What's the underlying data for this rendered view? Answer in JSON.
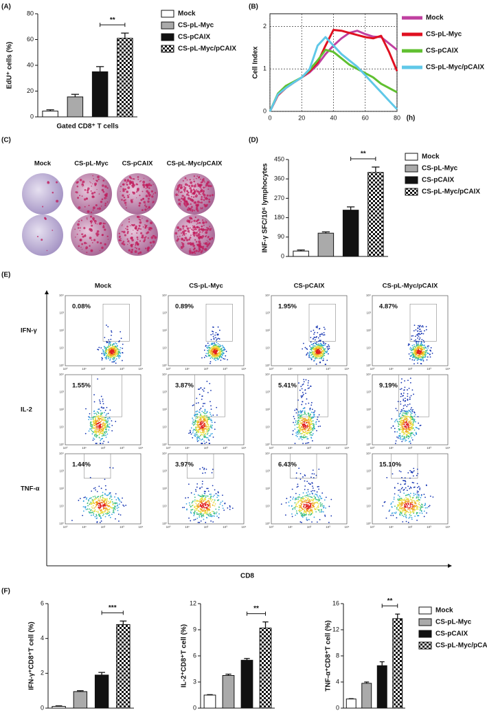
{
  "panel_labels": [
    "(A)",
    "(B)",
    "(C)",
    "(D)",
    "(E)",
    "(F)"
  ],
  "chart_data": [
    {
      "type": "bar",
      "y_label": "EdU⁺ cells (%)",
      "x_label": "Gated CD8⁺ T cells",
      "categories": [
        "Mock",
        "CS-pL-Myc",
        "CS-pCAIX",
        "CS-pL-Myc/pCAIX"
      ],
      "values": [
        4.5,
        15.5,
        35,
        61
      ],
      "errors": [
        1,
        2,
        4,
        4
      ],
      "fills": [
        "#ffffff",
        "#aaaaaa",
        "#111111",
        "checkerboard"
      ],
      "ylim": [
        0,
        80
      ],
      "yticks": [
        0,
        20,
        40,
        60,
        80
      ],
      "significance": {
        "between": [
          2,
          3
        ],
        "label": "**"
      }
    },
    {
      "type": "line",
      "y_label": "Cell Index",
      "x_label": "(h)",
      "grid": true,
      "x": [
        0,
        5,
        10,
        15,
        20,
        25,
        30,
        35,
        40,
        45,
        50,
        55,
        60,
        65,
        70,
        75,
        80
      ],
      "xlim": [
        0,
        80
      ],
      "xticks": [
        0,
        20,
        40,
        60,
        80
      ],
      "ylim": [
        0,
        2.3
      ],
      "yticks": [
        0,
        1,
        2
      ],
      "series": [
        {
          "name": "Mock",
          "color": "#c040a0",
          "values": [
            0,
            0.38,
            0.55,
            0.68,
            0.8,
            0.92,
            1.1,
            1.35,
            1.55,
            1.72,
            1.85,
            1.9,
            1.82,
            1.76,
            1.75,
            1.6,
            1.45
          ]
        },
        {
          "name": "CS-pL-Myc",
          "color": "#e01020",
          "values": [
            0,
            0.38,
            0.55,
            0.68,
            0.8,
            0.95,
            1.15,
            1.55,
            1.92,
            1.9,
            1.85,
            1.8,
            1.75,
            1.72,
            1.78,
            1.4,
            0.95
          ]
        },
        {
          "name": "CS-pCAIX",
          "color": "#60c030",
          "values": [
            0,
            0.42,
            0.6,
            0.7,
            0.8,
            0.98,
            1.2,
            1.45,
            1.4,
            1.25,
            1.1,
            1.0,
            0.9,
            0.8,
            0.65,
            0.55,
            0.45
          ]
        },
        {
          "name": "CS-pL-Myc/pCAIX",
          "color": "#60c8e8",
          "values": [
            0,
            0.4,
            0.55,
            0.68,
            0.8,
            1.0,
            1.55,
            1.75,
            1.55,
            1.35,
            1.2,
            1.05,
            0.85,
            0.65,
            0.45,
            0.25,
            0.05
          ]
        }
      ]
    },
    {
      "type": "bar",
      "y_label": "INF-γ SFC/10⁶ lymphocytes",
      "categories": [
        "Mock",
        "CS-pL-Myc",
        "CS-pCAIX",
        "CS-pL-Myc/pCAIX"
      ],
      "values": [
        25,
        108,
        215,
        390
      ],
      "errors": [
        5,
        6,
        15,
        25
      ],
      "fills": [
        "#ffffff",
        "#aaaaaa",
        "#111111",
        "checkerboard"
      ],
      "ylim": [
        0,
        450
      ],
      "yticks": [
        0,
        90,
        180,
        270,
        360,
        450
      ],
      "significance": {
        "between": [
          2,
          3
        ],
        "label": "**"
      }
    },
    {
      "type": "bar",
      "y_label": "IFN-γ⁺CD8⁺T cell (%)",
      "values": [
        0.1,
        0.95,
        1.9,
        4.8
      ],
      "errors": [
        0.03,
        0.05,
        0.15,
        0.2
      ],
      "fills": [
        "#ffffff",
        "#aaaaaa",
        "#111111",
        "checkerboard"
      ],
      "ylim": [
        0,
        6
      ],
      "yticks": [
        0,
        2,
        4,
        6
      ],
      "significance": {
        "between": [
          2,
          3
        ],
        "label": "***"
      }
    },
    {
      "type": "bar",
      "y_label": "IL-2⁺CD8⁺T cell (%)",
      "values": [
        1.5,
        3.75,
        5.5,
        9.2
      ],
      "errors": [
        0.05,
        0.15,
        0.2,
        0.7
      ],
      "fills": [
        "#ffffff",
        "#aaaaaa",
        "#111111",
        "checkerboard"
      ],
      "ylim": [
        0,
        12
      ],
      "yticks": [
        0,
        3,
        6,
        9,
        12
      ],
      "significance": {
        "between": [
          2,
          3
        ],
        "label": "**"
      }
    },
    {
      "type": "bar",
      "y_label": "TNF-α⁺CD8⁺T cell (%)",
      "categories": [
        "Mock",
        "CS-pL-Myc",
        "CS-pCAIX",
        "CS-pL-Myc/pCAIX"
      ],
      "values": [
        1.4,
        3.8,
        6.5,
        13.7
      ],
      "errors": [
        0.05,
        0.2,
        0.6,
        0.7
      ],
      "fills": [
        "#ffffff",
        "#aaaaaa",
        "#111111",
        "checkerboard"
      ],
      "ylim": [
        0,
        16
      ],
      "yticks": [
        0,
        4,
        8,
        12,
        16
      ],
      "significance": {
        "between": [
          2,
          3
        ],
        "label": "**"
      }
    }
  ],
  "elispot": {
    "columns": [
      "Mock",
      "CS-pL-Myc",
      "CS-pCAIX",
      "CS-pL-Myc/pCAIX"
    ]
  },
  "flow": {
    "columns": [
      "Mock",
      "CS-pL-Myc",
      "CS-pCAIX",
      "CS-pL-Myc/pCAIX"
    ],
    "rows": [
      "IFN-γ",
      "IL-2",
      "TNF-α"
    ],
    "percentages": [
      [
        "0.08%",
        "0.89%",
        "1.95%",
        "4.87%"
      ],
      [
        "1.55%",
        "3.87%",
        "5.41%",
        "9.19%"
      ],
      [
        "1.44%",
        "3.97%",
        "6.43%",
        "15.10%"
      ]
    ],
    "x_label": "CD8",
    "tick_labels": [
      "10⁰",
      "10¹",
      "10²",
      "10³",
      "10⁴"
    ]
  }
}
